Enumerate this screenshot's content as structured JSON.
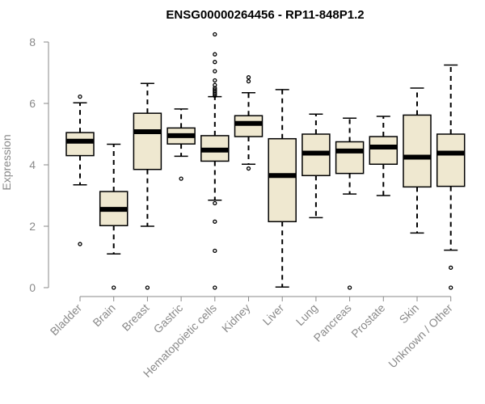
{
  "chart_data": {
    "type": "boxplot",
    "title": "ENSG00000264456 - RP11-848P1.2",
    "ylabel": "Expression",
    "xlabel": "",
    "ylim": [
      0,
      8
    ],
    "yticks": [
      0,
      2,
      4,
      6,
      8
    ],
    "box_fill": "#efe8d0",
    "categories": [
      "Bladder",
      "Brain",
      "Breast",
      "Gastric",
      "Hematopoietic cells",
      "Kidney",
      "Liver",
      "Lung",
      "Pancreas",
      "Prostate",
      "Skin",
      "Unknown / Other"
    ],
    "boxes": [
      {
        "lw": 3.35,
        "q1": 4.3,
        "med": 4.77,
        "q3": 5.05,
        "uw": 6.02,
        "out": [
          6.22,
          1.42
        ]
      },
      {
        "lw": 1.1,
        "q1": 2.02,
        "med": 2.55,
        "q3": 3.13,
        "uw": 4.67,
        "out": [
          0.0
        ]
      },
      {
        "lw": 2.0,
        "q1": 3.85,
        "med": 5.08,
        "q3": 5.68,
        "uw": 6.65,
        "out": [
          0.0
        ]
      },
      {
        "lw": 4.28,
        "q1": 4.68,
        "med": 4.95,
        "q3": 5.2,
        "uw": 5.82,
        "out": [
          3.55
        ]
      },
      {
        "lw": 2.85,
        "q1": 4.12,
        "med": 4.48,
        "q3": 4.95,
        "uw": 6.22,
        "out": [
          8.25,
          7.6,
          7.35,
          7.05,
          6.75,
          6.6,
          6.5,
          6.45,
          6.4,
          6.35,
          6.3,
          6.25,
          2.75,
          2.15,
          1.2,
          0.0
        ]
      },
      {
        "lw": 4.02,
        "q1": 4.92,
        "med": 5.35,
        "q3": 5.6,
        "uw": 6.35,
        "out": [
          6.85,
          6.72,
          3.88
        ]
      },
      {
        "lw": 0.02,
        "q1": 2.15,
        "med": 3.65,
        "q3": 4.85,
        "uw": 6.45,
        "out": []
      },
      {
        "lw": 2.28,
        "q1": 3.65,
        "med": 4.38,
        "q3": 5.0,
        "uw": 5.65,
        "out": []
      },
      {
        "lw": 3.05,
        "q1": 3.72,
        "med": 4.45,
        "q3": 4.75,
        "uw": 5.52,
        "out": [
          0.0
        ]
      },
      {
        "lw": 3.0,
        "q1": 4.02,
        "med": 4.58,
        "q3": 4.92,
        "uw": 5.58,
        "out": []
      },
      {
        "lw": 1.78,
        "q1": 3.28,
        "med": 4.25,
        "q3": 5.62,
        "uw": 6.5,
        "out": []
      },
      {
        "lw": 1.22,
        "q1": 3.3,
        "med": 4.38,
        "q3": 5.0,
        "uw": 7.25,
        "out": [
          0.65,
          0.0
        ]
      }
    ]
  }
}
